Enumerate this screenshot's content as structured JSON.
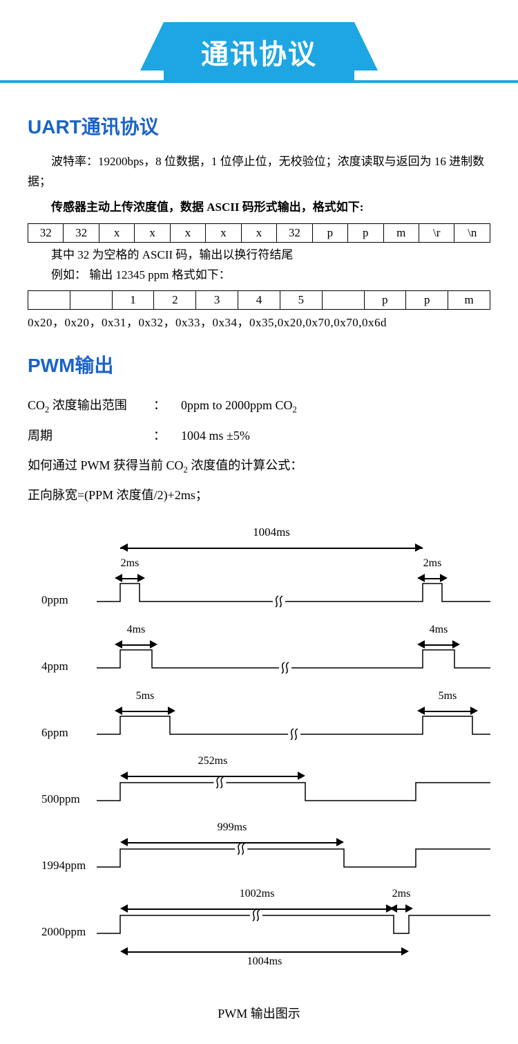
{
  "banner": {
    "title": "通讯协议"
  },
  "uart": {
    "heading": "UART通讯协议",
    "para1": "波特率：19200bps，8 位数据，1 位停止位，无校验位；浓度读取与返回为 16 进制数据；",
    "para2": "传感器主动上传浓度值，数据 ASCII 码形式输出，格式如下:",
    "table1": [
      "32",
      "32",
      "x",
      "x",
      "x",
      "x",
      "x",
      "32",
      "p",
      "p",
      "m",
      "\\r",
      "\\n"
    ],
    "note1": "其中 32 为空格的 ASCII 码，输出以换行符结尾",
    "note2": "例如：  输出 12345 ppm 格式如下：",
    "table2": [
      "",
      "",
      "1",
      "2",
      "3",
      "4",
      "5",
      "",
      "p",
      "p",
      "m"
    ],
    "hex": "0x20，0x20，0x31，0x32，0x33，0x34，0x35,0x20,0x70,0x70,0x6d"
  },
  "pwm": {
    "heading": "PWM输出",
    "spec1_label": "CO₂ 浓度输出范围",
    "spec1_value": "0ppm to 2000ppm CO₂",
    "spec2_label": "周期",
    "spec2_value": "1004 ms ±5%",
    "formula_intro": "如何通过 PWM 获得当前 CO₂ 浓度值的计算公式：",
    "formula": "正向脉宽=(PPM 浓度值/2)+2ms；",
    "period_label": "1004ms",
    "rows": [
      {
        "ppm": "0ppm",
        "pulse_label": "2ms",
        "pulse_w": 28,
        "type": "narrow"
      },
      {
        "ppm": "4ppm",
        "pulse_label": "4ms",
        "pulse_w": 46,
        "type": "narrow"
      },
      {
        "ppm": "6ppm",
        "pulse_label": "5ms",
        "pulse_w": 72,
        "type": "narrow"
      },
      {
        "ppm": "500ppm",
        "pulse_label": "252ms",
        "pulse_w": 268,
        "type": "wide"
      },
      {
        "ppm": "1994ppm",
        "pulse_label": "999ms",
        "pulse_w": 324,
        "type": "wide"
      },
      {
        "ppm": "2000ppm",
        "pulse_label": "1002ms",
        "pulse_w": 396,
        "type": "full",
        "end_label": "2ms",
        "bottom_label": "1004ms"
      }
    ],
    "caption": "PWM 输出图示"
  },
  "colors": {
    "banner_bg": "#1da6e3",
    "heading": "#1a63c8",
    "text": "#000000"
  }
}
